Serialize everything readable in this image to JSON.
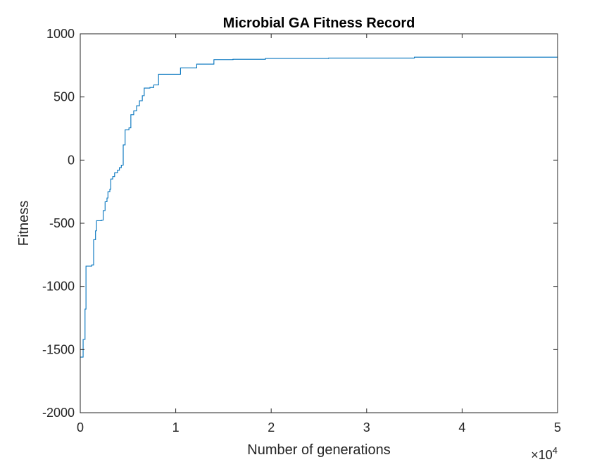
{
  "chart_data": {
    "type": "line",
    "title": "Microbial GA Fitness Record",
    "xlabel": "Number of generations",
    "ylabel": "Fitness",
    "xlim": [
      0,
      50000
    ],
    "ylim": [
      -2000,
      1000
    ],
    "x_ticks": [
      0,
      10000,
      20000,
      30000,
      40000,
      50000
    ],
    "x_tick_labels": [
      "0",
      "1",
      "2",
      "3",
      "4",
      "5"
    ],
    "x_exponent": {
      "base": "×10",
      "power": "4"
    },
    "y_ticks": [
      -2000,
      -1500,
      -1000,
      -500,
      0,
      500,
      1000
    ],
    "y_tick_labels": [
      "-2000",
      "-1500",
      "-1000",
      "-500",
      "0",
      "500",
      "1000"
    ],
    "grid": false,
    "box": true,
    "series": [
      {
        "color": "#0072BD",
        "step": true,
        "points": [
          [
            0,
            -1560
          ],
          [
            300,
            -1420
          ],
          [
            500,
            -1180
          ],
          [
            600,
            -840
          ],
          [
            1200,
            -830
          ],
          [
            1400,
            -630
          ],
          [
            1600,
            -560
          ],
          [
            1700,
            -480
          ],
          [
            2200,
            -475
          ],
          [
            2400,
            -400
          ],
          [
            2600,
            -330
          ],
          [
            2800,
            -300
          ],
          [
            2900,
            -250
          ],
          [
            3100,
            -230
          ],
          [
            3200,
            -150
          ],
          [
            3400,
            -130
          ],
          [
            3600,
            -100
          ],
          [
            3900,
            -80
          ],
          [
            4100,
            -60
          ],
          [
            4300,
            -40
          ],
          [
            4500,
            120
          ],
          [
            4700,
            240
          ],
          [
            5100,
            255
          ],
          [
            5300,
            360
          ],
          [
            5600,
            390
          ],
          [
            5900,
            430
          ],
          [
            6200,
            470
          ],
          [
            6500,
            510
          ],
          [
            6700,
            570
          ],
          [
            7300,
            575
          ],
          [
            7700,
            595
          ],
          [
            8200,
            680
          ],
          [
            10500,
            730
          ],
          [
            12200,
            760
          ],
          [
            14000,
            795
          ],
          [
            16000,
            798
          ],
          [
            19400,
            805
          ],
          [
            26000,
            808
          ],
          [
            35000,
            815
          ],
          [
            50000,
            820
          ]
        ]
      }
    ]
  }
}
